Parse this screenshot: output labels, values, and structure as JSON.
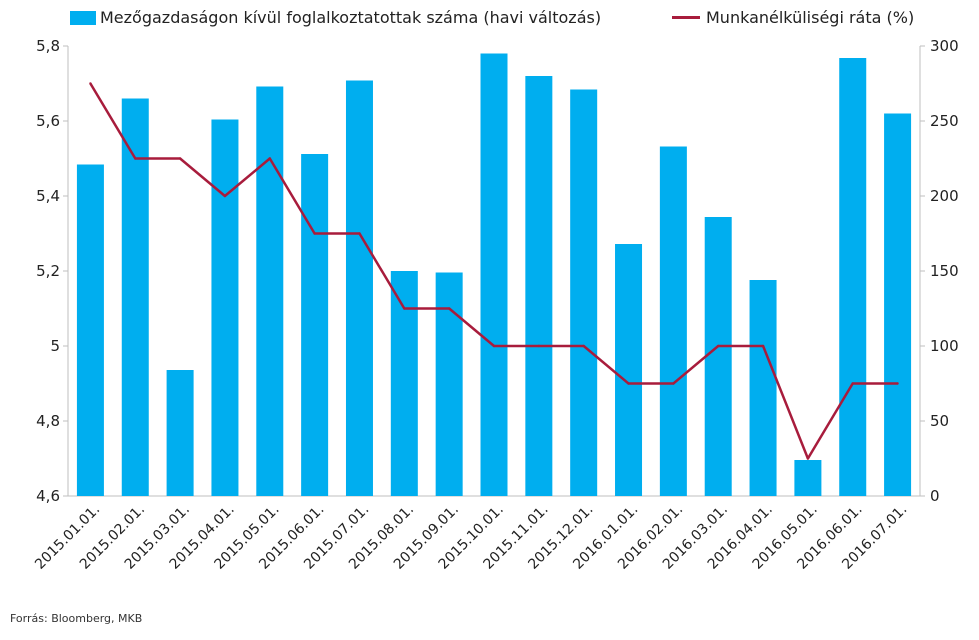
{
  "chart_data": {
    "type": "bar+line",
    "title": "",
    "categories": [
      "2015.01.01.",
      "2015.02.01.",
      "2015.03.01.",
      "2015.04.01.",
      "2015.05.01.",
      "2015.06.01.",
      "2015.07.01.",
      "2015.08.01.",
      "2015.09.01.",
      "2015.10.01.",
      "2015.11.01.",
      "2015.12.01.",
      "2016.01.01.",
      "2016.02.01.",
      "2016.03.01.",
      "2016.04.01.",
      "2016.05.01.",
      "2016.06.01.",
      "2016.07.01."
    ],
    "series": [
      {
        "name": "Mezőgazdaságon kívül foglalkoztatottak száma (havi változás)",
        "type": "bar",
        "axis": "right",
        "color": "#00AEEF",
        "values": [
          221,
          265,
          84,
          251,
          273,
          228,
          277,
          150,
          149,
          295,
          280,
          271,
          168,
          233,
          186,
          144,
          24,
          292,
          255
        ]
      },
      {
        "name": "Munkanélküliségi ráta (%)",
        "type": "line",
        "axis": "left",
        "color": "#A81C3C",
        "values": [
          5.7,
          5.5,
          5.5,
          5.4,
          5.5,
          5.3,
          5.3,
          5.1,
          5.1,
          5.0,
          5.0,
          5.0,
          4.9,
          4.9,
          5.0,
          5.0,
          4.7,
          4.9,
          4.9
        ]
      }
    ],
    "left_axis": {
      "min": 4.6,
      "max": 5.8,
      "ticks": [
        "4,6",
        "4,8",
        "5",
        "5,2",
        "5,4",
        "5,6",
        "5,8"
      ]
    },
    "right_axis": {
      "min": 0,
      "max": 300,
      "ticks": [
        "0",
        "50",
        "100",
        "150",
        "200",
        "250",
        "300"
      ]
    },
    "grid": false,
    "legend_position": "top"
  },
  "source": "Forrás: Bloomberg, MKB"
}
